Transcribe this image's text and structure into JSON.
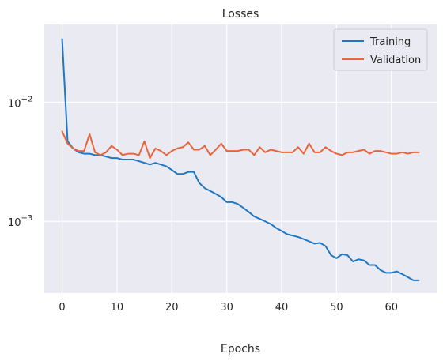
{
  "chart_data": {
    "type": "line",
    "title": "Losses",
    "xlabel": "Epochs",
    "ylabel": "",
    "xlim": [
      -3.25,
      68.25
    ],
    "ylim": [
      0.00025,
      0.045
    ],
    "yscale": "log",
    "grid": true,
    "background": "#eaeaf2",
    "gridColor": "#ffffff",
    "legend": {
      "placement": "top-right"
    },
    "x_ticks": [
      0,
      10,
      20,
      30,
      40,
      50,
      60
    ],
    "y_ticks": [
      {
        "value": 0.01,
        "base": "10",
        "exp": "−2"
      },
      {
        "value": 0.001,
        "base": "10",
        "exp": "−3"
      }
    ],
    "series": [
      {
        "name": "Training",
        "color": "#1f78c4",
        "x": [
          0,
          1,
          2,
          3,
          4,
          5,
          6,
          7,
          8,
          9,
          10,
          11,
          12,
          13,
          14,
          15,
          16,
          17,
          18,
          19,
          20,
          21,
          22,
          23,
          24,
          25,
          26,
          27,
          28,
          29,
          30,
          31,
          32,
          33,
          34,
          35,
          36,
          37,
          38,
          39,
          40,
          41,
          42,
          43,
          44,
          45,
          46,
          47,
          48,
          49,
          50,
          51,
          52,
          53,
          54,
          55,
          56,
          57,
          58,
          59,
          60,
          61,
          62,
          63,
          64,
          65
        ],
        "values": [
          0.034,
          0.0047,
          0.0041,
          0.0038,
          0.0037,
          0.0037,
          0.0036,
          0.0036,
          0.0035,
          0.0034,
          0.0034,
          0.0033,
          0.0033,
          0.0033,
          0.0032,
          0.0031,
          0.003,
          0.0031,
          0.003,
          0.0029,
          0.0027,
          0.0025,
          0.0025,
          0.0026,
          0.0026,
          0.0021,
          0.0019,
          0.0018,
          0.0017,
          0.0016,
          0.00145,
          0.00145,
          0.0014,
          0.0013,
          0.0012,
          0.0011,
          0.00105,
          0.001,
          0.00095,
          0.00088,
          0.00083,
          0.00078,
          0.00076,
          0.00074,
          0.00071,
          0.00068,
          0.00065,
          0.00066,
          0.00062,
          0.00052,
          0.00049,
          0.00053,
          0.00052,
          0.00046,
          0.00048,
          0.00047,
          0.00043,
          0.00043,
          0.00039,
          0.00037,
          0.00037,
          0.00038,
          0.00036,
          0.00034,
          0.00032,
          0.00032
        ]
      },
      {
        "name": "Validation",
        "color": "#e8643c",
        "x": [
          0,
          1,
          2,
          3,
          4,
          5,
          6,
          7,
          8,
          9,
          10,
          11,
          12,
          13,
          14,
          15,
          16,
          17,
          18,
          19,
          20,
          21,
          22,
          23,
          24,
          25,
          26,
          27,
          28,
          29,
          30,
          31,
          32,
          33,
          34,
          35,
          36,
          37,
          38,
          39,
          40,
          41,
          42,
          43,
          44,
          45,
          46,
          47,
          48,
          49,
          50,
          51,
          52,
          53,
          54,
          55,
          56,
          57,
          58,
          59,
          60,
          61,
          62,
          63,
          64,
          65
        ],
        "values": [
          0.0057,
          0.0045,
          0.0041,
          0.0039,
          0.0039,
          0.0054,
          0.0038,
          0.0036,
          0.0038,
          0.0043,
          0.004,
          0.0036,
          0.0037,
          0.0037,
          0.0036,
          0.0047,
          0.0034,
          0.0041,
          0.0039,
          0.0036,
          0.0039,
          0.0041,
          0.0042,
          0.0046,
          0.004,
          0.004,
          0.0043,
          0.0036,
          0.004,
          0.0045,
          0.0039,
          0.0039,
          0.0039,
          0.004,
          0.004,
          0.0036,
          0.0042,
          0.0038,
          0.004,
          0.0039,
          0.0038,
          0.0038,
          0.0038,
          0.0042,
          0.0037,
          0.0045,
          0.0038,
          0.0038,
          0.0042,
          0.0039,
          0.0037,
          0.0036,
          0.0038,
          0.0038,
          0.0039,
          0.004,
          0.0037,
          0.0039,
          0.0039,
          0.0038,
          0.0037,
          0.0037,
          0.0038,
          0.0037,
          0.0038,
          0.0038
        ]
      }
    ]
  }
}
